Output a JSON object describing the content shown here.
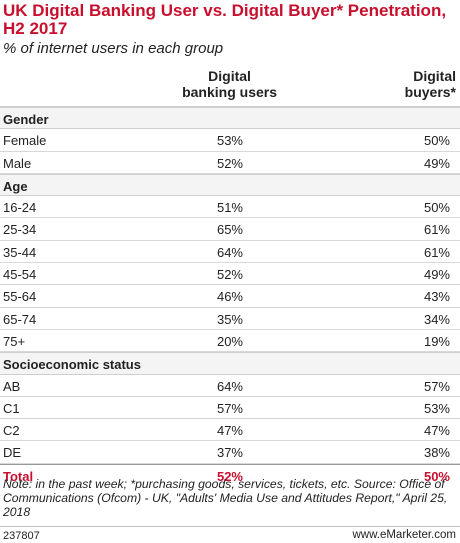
{
  "title": "UK Digital Banking User vs. Digital Buyer* Penetration, H2 2017",
  "subtitle": "% of internet users in each group",
  "col1_header": "Digital banking users",
  "col2_header": "Digital buyers*",
  "notes": "Note: in the past week; *purchasing goods, services, tickets, etc. Source: Office of Communications (Ofcom) - UK, \"Adults' Media Use and Attitudes Report,\" April 25, 2018",
  "chart_id": "237807",
  "brand": "www.eMarketer.com",
  "chart_data": {
    "type": "table",
    "columns": [
      "Digital banking users",
      "Digital buyers*"
    ],
    "sections": [
      {
        "name": "Gender",
        "rows": [
          {
            "label": "Female",
            "values": [
              "53%",
              "50%"
            ]
          },
          {
            "label": "Male",
            "values": [
              "52%",
              "49%"
            ]
          }
        ]
      },
      {
        "name": "Age",
        "rows": [
          {
            "label": "16-24",
            "values": [
              "51%",
              "50%"
            ]
          },
          {
            "label": "25-34",
            "values": [
              "65%",
              "61%"
            ]
          },
          {
            "label": "35-44",
            "values": [
              "64%",
              "61%"
            ]
          },
          {
            "label": "45-54",
            "values": [
              "52%",
              "49%"
            ]
          },
          {
            "label": "55-64",
            "values": [
              "46%",
              "43%"
            ]
          },
          {
            "label": "65-74",
            "values": [
              "35%",
              "34%"
            ]
          },
          {
            "label": "75+",
            "values": [
              "20%",
              "19%"
            ]
          }
        ]
      },
      {
        "name": "Socioeconomic status",
        "rows": [
          {
            "label": "AB",
            "values": [
              "64%",
              "57%"
            ]
          },
          {
            "label": "C1",
            "values": [
              "57%",
              "53%"
            ]
          },
          {
            "label": "C2",
            "values": [
              "47%",
              "47%"
            ]
          },
          {
            "label": "DE",
            "values": [
              "37%",
              "38%"
            ]
          }
        ]
      }
    ],
    "total": {
      "label": "Total",
      "values": [
        "52%",
        "50%"
      ]
    }
  }
}
